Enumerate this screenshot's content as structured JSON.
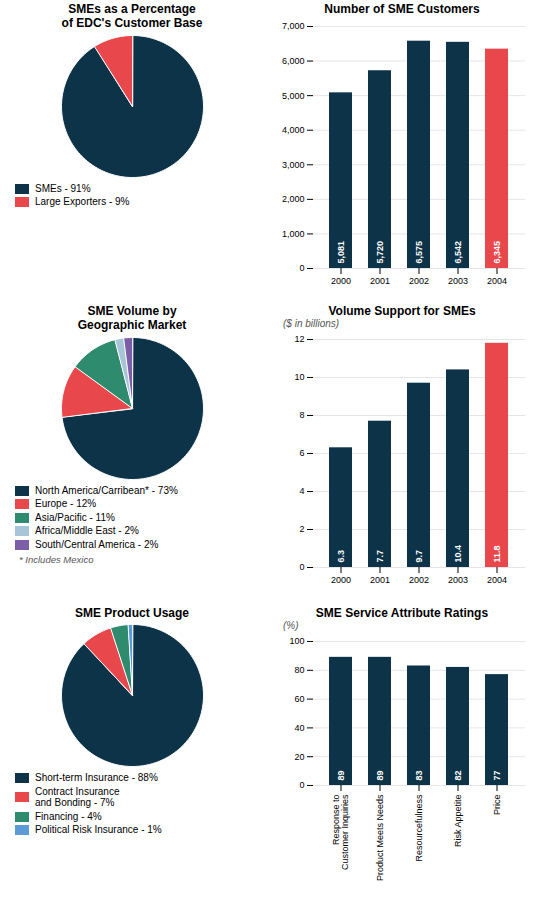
{
  "chart_data": [
    {
      "type": "pie",
      "title": "SMEs as a Percentage\nof EDC's Customer Base",
      "categories": [
        "SMEs - 91%",
        "Large Exporters - 9%"
      ],
      "values": [
        91,
        9
      ],
      "colors": [
        "#0d3349",
        "#e8474c"
      ],
      "legend": "bottom"
    },
    {
      "type": "bar",
      "title": "Number of SME Customers",
      "categories": [
        "2000",
        "2001",
        "2002",
        "2003",
        "2004"
      ],
      "values": [
        5081,
        5720,
        6575,
        6542,
        6345
      ],
      "colors": [
        "#0d3349",
        "#0d3349",
        "#0d3349",
        "#0d3349",
        "#e8474c"
      ],
      "ylim": [
        0,
        7000
      ],
      "yticks": [
        0,
        {
          "value": 1000,
          "label": "1,000"
        },
        {
          "value": 2000,
          "label": "2,000"
        },
        {
          "value": 3000,
          "label": "3,000"
        },
        {
          "value": 4000,
          "label": "4,000"
        },
        {
          "value": 5000,
          "label": "5,000"
        },
        {
          "value": 6000,
          "label": "6,000"
        },
        {
          "value": 7000,
          "label": "7,000"
        }
      ],
      "grid": true,
      "data_labels": true,
      "value_labels": [
        "5,081",
        "5,720",
        "6,575",
        "6,542",
        "6,345"
      ]
    },
    {
      "type": "pie",
      "title": "SME Volume by\nGeographic Market",
      "categories": [
        "North America/Carribean* - 73%",
        "Europe - 12%",
        "Asia/Pacific - 11%",
        "Africa/Middle East - 2%",
        "South/Central America - 2%"
      ],
      "values": [
        73,
        12,
        11,
        2,
        2
      ],
      "colors": [
        "#0d3349",
        "#e8474c",
        "#2e8b6e",
        "#a8c4d8",
        "#7b5ea7"
      ],
      "legend": "bottom",
      "annotations": [
        "* Includes Mexico"
      ]
    },
    {
      "type": "bar",
      "title": "Volume Support for SMEs",
      "subtitle": "($ in billions)",
      "categories": [
        "2000",
        "2001",
        "2002",
        "2003",
        "2004"
      ],
      "values": [
        6.3,
        7.7,
        9.7,
        10.4,
        11.8
      ],
      "colors": [
        "#0d3349",
        "#0d3349",
        "#0d3349",
        "#0d3349",
        "#e8474c"
      ],
      "ylim": [
        0,
        12
      ],
      "yticks": [
        0,
        2,
        4,
        6,
        8,
        10,
        12
      ],
      "grid": true,
      "data_labels": true
    },
    {
      "type": "pie",
      "title": "SME Product Usage",
      "categories": [
        "Short-term Insurance - 88%",
        "Contract Insurance\nand Bonding - 7%",
        "Financing - 4%",
        "Political Risk Insurance - 1%"
      ],
      "values": [
        88,
        7,
        4,
        1
      ],
      "colors": [
        "#0d3349",
        "#e8474c",
        "#2e8b6e",
        "#5b9bd5"
      ],
      "legend": "bottom"
    },
    {
      "type": "bar",
      "title": "SME Service Attribute Ratings",
      "subtitle": "(%)",
      "categories": [
        "Response to\nCustomer Inquiries",
        "Product Meets Needs",
        "Resourcefulness",
        "Risk Appetite",
        "Price"
      ],
      "values": [
        89,
        89,
        83,
        82,
        77
      ],
      "colors": [
        "#0d3349",
        "#0d3349",
        "#0d3349",
        "#0d3349",
        "#0d3349"
      ],
      "ylim": [
        0,
        100
      ],
      "yticks": [
        0,
        20,
        40,
        60,
        80,
        100
      ],
      "grid": true,
      "data_labels": true
    }
  ]
}
